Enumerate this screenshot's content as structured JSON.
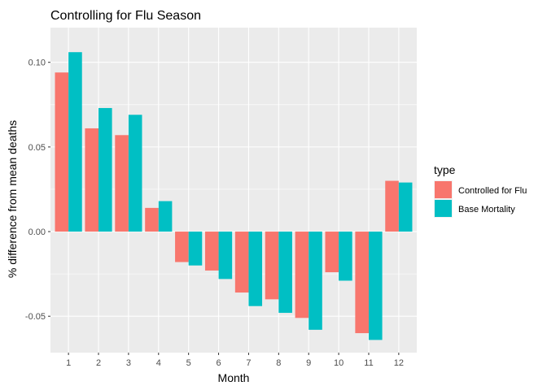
{
  "chart_data": {
    "type": "bar",
    "title": "Controlling for Flu Season",
    "xlabel": "Month",
    "ylabel": "% difference from mean deaths",
    "categories": [
      "1",
      "2",
      "3",
      "4",
      "5",
      "6",
      "7",
      "8",
      "9",
      "10",
      "11",
      "12"
    ],
    "series": [
      {
        "name": "Controlled for Flu",
        "color": "#F8766D",
        "values": [
          0.094,
          0.061,
          0.057,
          0.014,
          -0.018,
          -0.023,
          -0.036,
          -0.04,
          -0.051,
          -0.024,
          -0.06,
          0.03
        ]
      },
      {
        "name": "Base Mortality",
        "color": "#00BFC4",
        "values": [
          0.106,
          0.073,
          0.069,
          0.018,
          -0.02,
          -0.028,
          -0.044,
          -0.048,
          -0.058,
          -0.029,
          -0.064,
          0.029
        ]
      }
    ],
    "ylim": [
      -0.0715,
      0.1205
    ],
    "yticks": [
      -0.05,
      0.0,
      0.05,
      0.1
    ],
    "ytick_labels": [
      "-0.05",
      "0.00",
      "0.05",
      "0.10"
    ],
    "legend": {
      "title": "type",
      "position": "right"
    },
    "grid": true,
    "panel_background": "#EBEBEB"
  }
}
